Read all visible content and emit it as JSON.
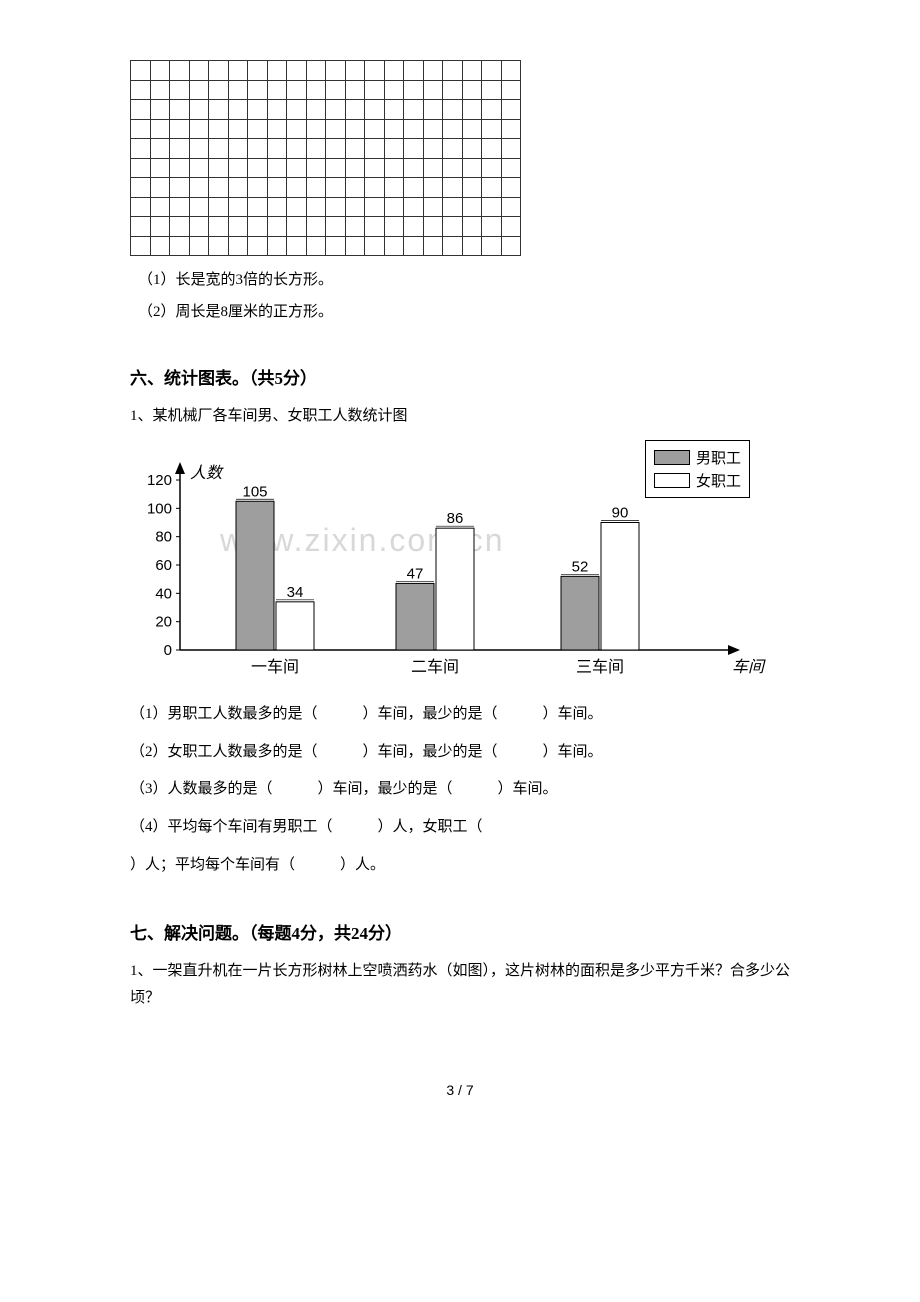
{
  "grid": {
    "rows": 10,
    "cols": 20
  },
  "sub_items": {
    "a": "（1）长是宽的3倍的长方形。",
    "b": "（2）周长是8厘米的正方形。"
  },
  "section6": {
    "title": "六、统计图表。（共5分）",
    "q1": "1、某机械厂各车间男、女职工人数统计图",
    "legend": {
      "male": "男职工",
      "female": "女职工"
    },
    "chart": {
      "ylabel": "人数",
      "xlabel": "车间",
      "ymax": 120,
      "ytick_step": 20,
      "yticks": [
        0,
        20,
        40,
        60,
        80,
        100,
        120
      ],
      "categories": [
        "一车间",
        "二车间",
        "三车间"
      ],
      "male_values": [
        105,
        47,
        52
      ],
      "female_values": [
        34,
        86,
        90
      ],
      "male_color": "#9e9e9e",
      "female_color": "#ffffff",
      "axis_color": "#000000",
      "bar_border": "#000000",
      "watermark": "www.zixin.com.cn"
    },
    "blanks": {
      "b1": "（1）男职工人数最多的是（　　　）车间，最少的是（　　　）车间。",
      "b2": "（2）女职工人数最多的是（　　　）车间，最少的是（　　　）车间。",
      "b3": "（3）人数最多的是（　　　）车间，最少的是（　　　）车间。",
      "b4": "（4）平均每个车间有男职工（　　　）人，女职工（",
      "b4b": "）人；平均每个车间有（　　　）人。"
    }
  },
  "section7": {
    "title": "七、解决问题。（每题4分，共24分）",
    "q1": "1、一架直升机在一片长方形树林上空喷洒药水（如图），这片树林的面积是多少平方千米？合多少公顷？"
  },
  "pagenum": "3 / 7"
}
